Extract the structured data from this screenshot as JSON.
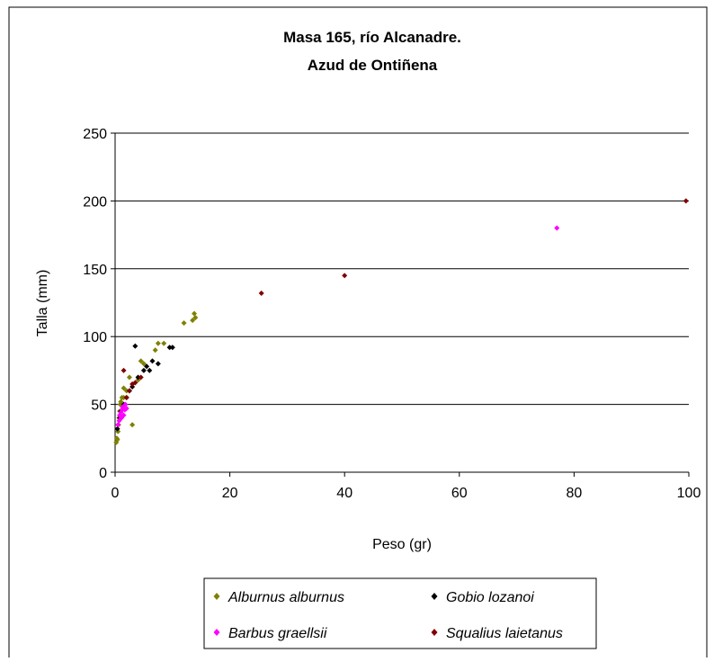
{
  "chart_data": {
    "type": "scatter",
    "title_lines": [
      "Masa 165, río Alcanadre.",
      "Azud de Ontiñena"
    ],
    "xlabel": "Peso (gr)",
    "ylabel": "Talla (mm)",
    "xlim": [
      0,
      100
    ],
    "ylim": [
      0,
      250
    ],
    "x_ticks": [
      "0",
      "20",
      "40",
      "60",
      "80",
      "100"
    ],
    "y_ticks": [
      "0",
      "50",
      "100",
      "150",
      "200",
      "250"
    ],
    "grid": "horizontal",
    "legend_position": "bottom",
    "series": [
      {
        "name": "Alburnus alburnus",
        "color": "#808000",
        "marker": "diamond",
        "points": [
          [
            0.2,
            22
          ],
          [
            0.3,
            25
          ],
          [
            0.4,
            24
          ],
          [
            0.5,
            30
          ],
          [
            0.6,
            35
          ],
          [
            0.7,
            40
          ],
          [
            0.8,
            45
          ],
          [
            0.9,
            50
          ],
          [
            1.0,
            52
          ],
          [
            1.2,
            55
          ],
          [
            1.5,
            55
          ],
          [
            1.5,
            62
          ],
          [
            2.0,
            60
          ],
          [
            2.5,
            70
          ],
          [
            3.0,
            35
          ],
          [
            4.0,
            68
          ],
          [
            4.5,
            82
          ],
          [
            5.0,
            80
          ],
          [
            7.0,
            90
          ],
          [
            7.5,
            95
          ],
          [
            8.5,
            95
          ],
          [
            12.0,
            110
          ],
          [
            13.5,
            112
          ],
          [
            13.8,
            117
          ],
          [
            14.0,
            114
          ]
        ]
      },
      {
        "name": "Gobio lozanoi",
        "color": "#000000",
        "marker": "diamond",
        "points": [
          [
            0.4,
            32
          ],
          [
            0.8,
            40
          ],
          [
            1.0,
            45
          ],
          [
            1.5,
            50
          ],
          [
            2.0,
            55
          ],
          [
            2.5,
            60
          ],
          [
            3.0,
            63
          ],
          [
            3.5,
            93
          ],
          [
            4.0,
            70
          ],
          [
            5.0,
            75
          ],
          [
            5.5,
            78
          ],
          [
            6.0,
            75
          ],
          [
            6.5,
            82
          ],
          [
            7.5,
            80
          ],
          [
            9.5,
            92
          ],
          [
            10.0,
            92
          ]
        ]
      },
      {
        "name": "Barbus graellsii",
        "color": "#ff00ff",
        "marker": "diamond",
        "points": [
          [
            0.5,
            35
          ],
          [
            0.7,
            38
          ],
          [
            0.8,
            42
          ],
          [
            1.0,
            44
          ],
          [
            1.1,
            40
          ],
          [
            1.2,
            46
          ],
          [
            1.3,
            48
          ],
          [
            1.5,
            42
          ],
          [
            1.7,
            46
          ],
          [
            1.8,
            50
          ],
          [
            2.0,
            47
          ],
          [
            77.0,
            180
          ]
        ]
      },
      {
        "name": "Squalius laietanus",
        "color": "#800000",
        "marker": "diamond",
        "points": [
          [
            1.5,
            75
          ],
          [
            2.0,
            55
          ],
          [
            2.5,
            60
          ],
          [
            3.0,
            65
          ],
          [
            3.5,
            66
          ],
          [
            4.5,
            70
          ],
          [
            25.5,
            132
          ],
          [
            40.0,
            145
          ],
          [
            99.5,
            200
          ]
        ]
      }
    ]
  }
}
